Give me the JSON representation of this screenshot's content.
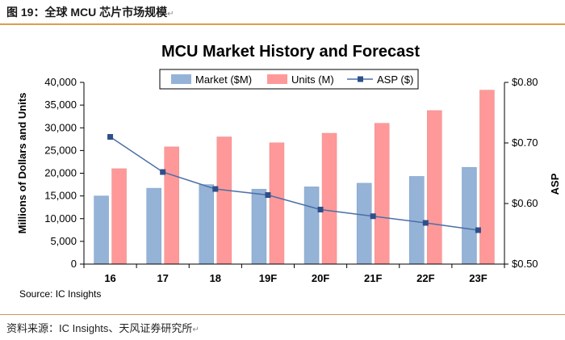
{
  "figure": {
    "caption": "图 19：全球 MCU 芯片市场规模",
    "caption_mark": "↵",
    "source": "资料来源：IC Insights、天风证券研究所",
    "source_mark": "↵"
  },
  "chart_data": {
    "type": "bar",
    "title": "MCU Market History and Forecast",
    "categories": [
      "16",
      "17",
      "18",
      "19F",
      "20F",
      "21F",
      "22F",
      "23F"
    ],
    "series": [
      {
        "name": "Market ($M)",
        "kind": "bar",
        "axis": "left",
        "color": "#95b3d7",
        "values": [
          15000,
          16700,
          17500,
          16500,
          17000,
          17800,
          19300,
          21300
        ]
      },
      {
        "name": "Units (M)",
        "kind": "bar",
        "axis": "left",
        "color": "#ff9999",
        "values": [
          21000,
          25800,
          28000,
          26700,
          28800,
          31000,
          33800,
          38300
        ]
      },
      {
        "name": "ASP ($)",
        "kind": "line",
        "axis": "right",
        "color": "#4a6fa5",
        "values": [
          0.71,
          0.652,
          0.624,
          0.614,
          0.59,
          0.579,
          0.568,
          0.556
        ]
      }
    ],
    "ylabel": "Millions of Dollars and Units",
    "ylim": [
      0,
      40000
    ],
    "yticks": [
      0,
      5000,
      10000,
      15000,
      20000,
      25000,
      30000,
      35000,
      40000
    ],
    "ytick_labels": [
      "0",
      "5,000",
      "10,000",
      "15,000",
      "20,000",
      "25,000",
      "30,000",
      "35,000",
      "40,000"
    ],
    "y2label": "ASP",
    "y2lim": [
      0.5,
      0.8
    ],
    "y2ticks": [
      0.5,
      0.6,
      0.7,
      0.8
    ],
    "y2tick_labels": [
      "$0.50",
      "$0.60",
      "$0.70",
      "$0.80"
    ],
    "legend_position": "top",
    "grid": false,
    "annotation": "Source:  IC Insights",
    "colors": {
      "axis": "#000000",
      "line_marker": "#2f4f8a"
    }
  }
}
